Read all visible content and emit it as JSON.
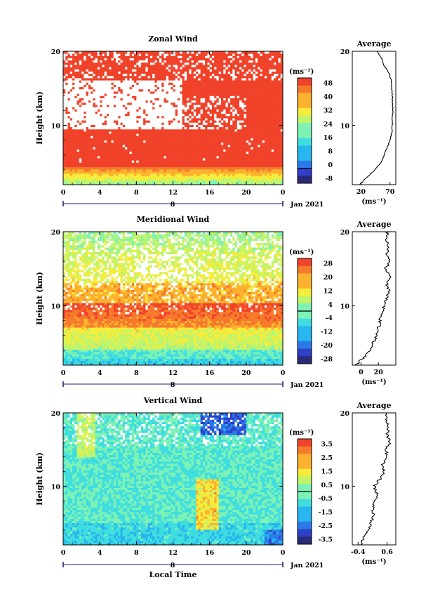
{
  "colors": {
    "scale": [
      "#2a2a7a",
      "#2f3fc8",
      "#2a7be8",
      "#27b6ee",
      "#3fdde0",
      "#7df2b4",
      "#c0f46a",
      "#f5ec3c",
      "#fcb12f",
      "#f57a2c",
      "#f0432a"
    ],
    "missing": "#ffffff",
    "axis": "#000000",
    "line": "#000000",
    "date_line": "#1a1a70"
  },
  "x_axis": {
    "ticks": [
      "0",
      "4",
      "8",
      "12",
      "16",
      "20",
      "0"
    ],
    "date_tick": "8",
    "date_label": "Jan 2021",
    "label": "Local Time"
  },
  "y_axis": {
    "label": "Height (km)",
    "ticks": [
      "10",
      "20"
    ]
  },
  "unit_label": "(ms⁻¹)",
  "avg_title": "Average",
  "chart_data": [
    {
      "type": "heatmap",
      "title": "Zonal Wind",
      "xlabel": "",
      "ylabel": "Height (km)",
      "xlim": [
        0,
        24
      ],
      "ylim": [
        2,
        20
      ],
      "colorbar": {
        "unit": "(ms⁻¹)",
        "range": [
          -8,
          48
        ],
        "ticks": [
          "48",
          "40",
          "32",
          "24",
          "16",
          "8",
          "0",
          "-8"
        ]
      },
      "avg_profile": {
        "title": "Average",
        "xlabel": "(ms⁻¹)",
        "xticks": [
          "20",
          "70"
        ],
        "xlim": [
          5,
          80
        ],
        "height": [
          2,
          3,
          4,
          5,
          6,
          7,
          8,
          9,
          10,
          11,
          12,
          13,
          14,
          15,
          16,
          17,
          18,
          19,
          20
        ],
        "value": [
          18,
          30,
          44,
          54,
          60,
          65,
          70,
          73,
          74,
          74,
          75,
          74,
          74,
          73,
          72,
          69,
          60,
          56,
          48
        ]
      }
    },
    {
      "type": "heatmap",
      "title": "Meridional Wind",
      "xlabel": "",
      "ylabel": "Height (km)",
      "xlim": [
        0,
        24
      ],
      "ylim": [
        2,
        20
      ],
      "colorbar": {
        "unit": "(ms⁻¹)",
        "range": [
          -28,
          28
        ],
        "ticks": [
          "28",
          "20",
          "12",
          "4",
          "-4",
          "-12",
          "-20",
          "-28"
        ]
      },
      "avg_profile": {
        "title": "Average",
        "xlabel": "(ms⁻¹)",
        "xticks": [
          "0",
          "20"
        ],
        "xlim": [
          -10,
          40
        ],
        "height": [
          2,
          3,
          4,
          5,
          6,
          7,
          8,
          9,
          10,
          11,
          12,
          13,
          14,
          15,
          16,
          17,
          18,
          19,
          20
        ],
        "value": [
          -6,
          3,
          10,
          14,
          18,
          20,
          22,
          24,
          26,
          30,
          32,
          30,
          33,
          28,
          34,
          30,
          32,
          28,
          31
        ]
      }
    },
    {
      "type": "heatmap",
      "title": "Vertical Wind",
      "xlabel": "Local Time",
      "ylabel": "Height (km)",
      "xlim": [
        0,
        24
      ],
      "ylim": [
        2,
        20
      ],
      "colorbar": {
        "unit": "(ms⁻¹)",
        "range": [
          -3.5,
          3.5
        ],
        "ticks": [
          "3.5",
          "2.5",
          "1.5",
          "0.5",
          "-0.5",
          "-1.5",
          "-2.5",
          "-3.5"
        ]
      },
      "avg_profile": {
        "title": "Average",
        "xlabel": "(ms⁻¹)",
        "xticks": [
          "-0.4",
          "0.6"
        ],
        "xlim": [
          -0.6,
          0.9
        ],
        "height": [
          2,
          3,
          4,
          5,
          6,
          7,
          8,
          9,
          10,
          11,
          12,
          13,
          14,
          15,
          16,
          17,
          18,
          19,
          20
        ],
        "value": [
          -0.3,
          -0.2,
          -0.05,
          0.05,
          0.15,
          0.1,
          0.2,
          0.25,
          0.15,
          0.35,
          0.5,
          0.45,
          0.6,
          0.55,
          0.7,
          0.6,
          0.65,
          0.55,
          0.6
        ]
      }
    }
  ]
}
